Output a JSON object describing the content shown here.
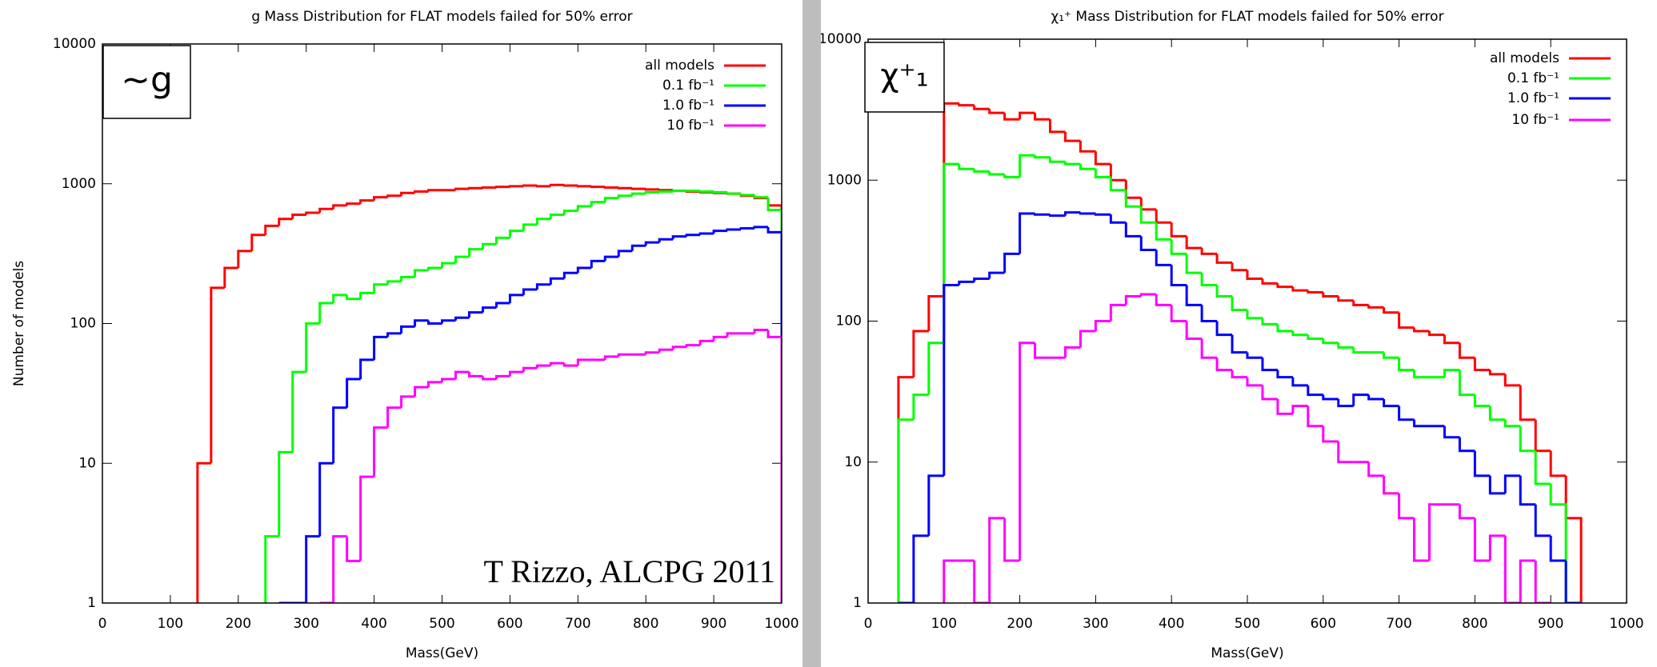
{
  "chart_data": [
    {
      "type": "histogram",
      "title": "g Mass Distribution for FLAT models failed for 50% error",
      "xlabel": "Mass(GeV)",
      "ylabel": "Number of models",
      "box_label": "~g",
      "annotation": "T Rizzo, ALCPG 2011",
      "log_y": true,
      "legend": "upper right",
      "xlim": [
        0,
        1000
      ],
      "xticks": [
        0,
        100,
        200,
        300,
        400,
        500,
        600,
        700,
        800,
        900,
        1000
      ],
      "ylim": [
        1,
        10000
      ],
      "yticks": [
        1,
        10,
        100,
        1000,
        10000
      ],
      "bins": [
        0,
        20,
        40,
        60,
        80,
        100,
        120,
        140,
        160,
        180,
        200,
        220,
        240,
        260,
        280,
        300,
        320,
        340,
        360,
        380,
        400,
        420,
        440,
        460,
        480,
        500,
        520,
        540,
        560,
        580,
        600,
        620,
        640,
        660,
        680,
        700,
        720,
        740,
        760,
        780,
        800,
        820,
        840,
        860,
        880,
        900,
        920,
        940,
        960,
        980,
        1000
      ],
      "series": [
        {
          "name": "all models",
          "color": "#ff0000",
          "values": [
            null,
            null,
            null,
            null,
            null,
            null,
            null,
            10,
            180,
            250,
            330,
            430,
            500,
            560,
            600,
            620,
            660,
            700,
            720,
            760,
            800,
            820,
            860,
            880,
            900,
            900,
            920,
            930,
            940,
            950,
            960,
            970,
            960,
            980,
            970,
            960,
            950,
            940,
            930,
            920,
            910,
            900,
            890,
            880,
            870,
            860,
            850,
            820,
            790,
            700
          ]
        },
        {
          "name": "0.1 fb⁻¹",
          "color": "#00ff00",
          "values": [
            null,
            null,
            null,
            null,
            null,
            null,
            null,
            null,
            null,
            null,
            null,
            null,
            3,
            12,
            45,
            100,
            140,
            160,
            150,
            165,
            190,
            200,
            215,
            240,
            250,
            270,
            300,
            340,
            370,
            410,
            460,
            510,
            560,
            600,
            640,
            690,
            740,
            790,
            820,
            850,
            870,
            880,
            890,
            890,
            880,
            870,
            850,
            830,
            800,
            650
          ]
        },
        {
          "name": "1.0 fb⁻¹",
          "color": "#0000ff",
          "values": [
            null,
            null,
            null,
            null,
            null,
            null,
            null,
            null,
            null,
            null,
            null,
            null,
            null,
            1,
            1,
            3,
            10,
            25,
            40,
            55,
            80,
            85,
            95,
            105,
            100,
            105,
            110,
            120,
            130,
            140,
            160,
            175,
            190,
            210,
            230,
            250,
            280,
            300,
            330,
            360,
            380,
            400,
            420,
            430,
            440,
            460,
            470,
            480,
            490,
            450
          ]
        },
        {
          "name": "10 fb⁻¹",
          "color": "#ff00ff",
          "values": [
            null,
            null,
            null,
            null,
            null,
            null,
            null,
            null,
            null,
            null,
            null,
            null,
            null,
            null,
            null,
            null,
            1,
            3,
            2,
            8,
            18,
            25,
            30,
            35,
            38,
            40,
            45,
            42,
            40,
            42,
            45,
            48,
            50,
            52,
            50,
            55,
            55,
            58,
            60,
            60,
            62,
            65,
            68,
            70,
            75,
            80,
            85,
            85,
            90,
            80
          ]
        }
      ]
    },
    {
      "type": "histogram",
      "title": "χ₁⁺ Mass Distribution for FLAT models failed for 50% error",
      "xlabel": "Mass(GeV)",
      "box_label": "χ⁺₁",
      "log_y": true,
      "legend": "upper right",
      "xlim": [
        0,
        1000
      ],
      "xticks": [
        0,
        100,
        200,
        300,
        400,
        500,
        600,
        700,
        800,
        900,
        1000
      ],
      "ylim": [
        1,
        10000
      ],
      "yticks": [
        1,
        10,
        100,
        1000,
        10000
      ],
      "bins": [
        40,
        60,
        80,
        100,
        120,
        140,
        160,
        180,
        200,
        220,
        240,
        260,
        280,
        300,
        320,
        340,
        360,
        380,
        400,
        420,
        440,
        460,
        480,
        500,
        520,
        540,
        560,
        580,
        600,
        620,
        640,
        660,
        680,
        700,
        720,
        740,
        760,
        780,
        800,
        820,
        840,
        860,
        880,
        900,
        920,
        940
      ],
      "series": [
        {
          "name": "all models",
          "color": "#ff0000",
          "values": [
            40,
            85,
            150,
            3500,
            3400,
            3200,
            3000,
            2700,
            3000,
            2700,
            2200,
            1900,
            1600,
            1300,
            1000,
            750,
            620,
            500,
            400,
            330,
            300,
            260,
            230,
            200,
            185,
            175,
            165,
            160,
            150,
            140,
            130,
            125,
            115,
            90,
            85,
            80,
            70,
            55,
            45,
            42,
            35,
            20,
            12,
            8,
            4
          ]
        },
        {
          "name": "0.1 fb⁻¹",
          "color": "#00ff00",
          "values": [
            20,
            30,
            70,
            1300,
            1200,
            1150,
            1100,
            1050,
            1500,
            1450,
            1350,
            1300,
            1200,
            1050,
            850,
            650,
            500,
            380,
            300,
            220,
            180,
            150,
            120,
            105,
            95,
            85,
            80,
            75,
            70,
            65,
            60,
            60,
            55,
            45,
            40,
            40,
            45,
            30,
            25,
            20,
            18,
            12,
            7,
            5,
            null
          ]
        },
        {
          "name": "1.0 fb⁻¹",
          "color": "#0000ff",
          "values": [
            1,
            3,
            8,
            180,
            190,
            200,
            220,
            300,
            580,
            570,
            560,
            590,
            580,
            570,
            500,
            400,
            320,
            250,
            180,
            130,
            100,
            80,
            60,
            55,
            45,
            40,
            35,
            30,
            28,
            25,
            30,
            28,
            25,
            20,
            18,
            18,
            15,
            12,
            8,
            6,
            8,
            5,
            3,
            2,
            1
          ]
        },
        {
          "name": "10 fb⁻¹",
          "color": "#ff00ff",
          "values": [
            null,
            null,
            null,
            2,
            2,
            1,
            4,
            2,
            70,
            55,
            55,
            65,
            85,
            100,
            130,
            150,
            155,
            130,
            100,
            75,
            55,
            45,
            40,
            35,
            28,
            22,
            25,
            18,
            14,
            10,
            10,
            8,
            6,
            4,
            2,
            5,
            5,
            4,
            2,
            3,
            1,
            2,
            1,
            null,
            null
          ]
        }
      ]
    }
  ]
}
